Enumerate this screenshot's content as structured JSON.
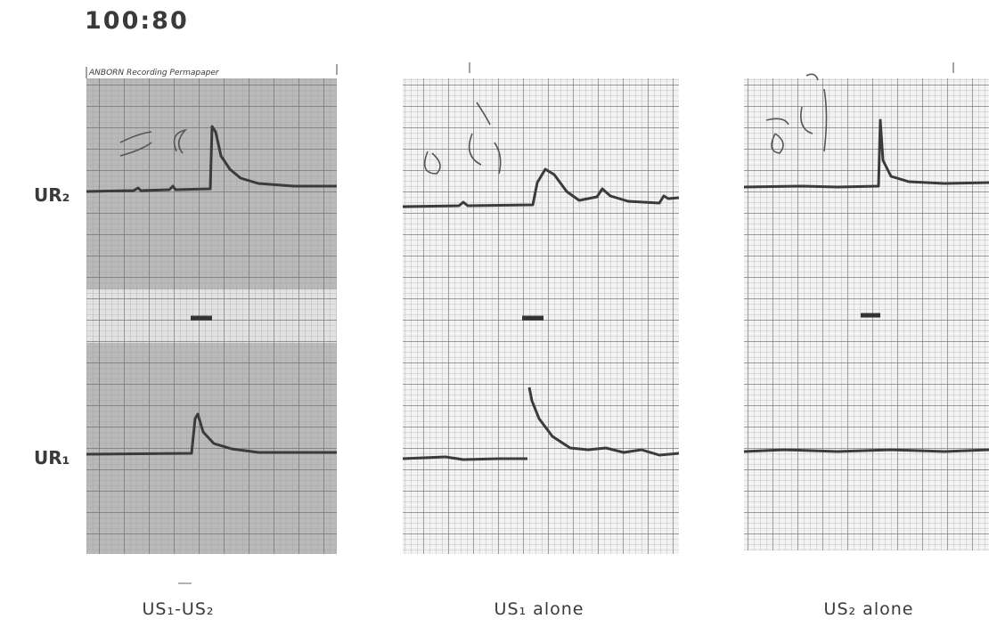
{
  "title": "100:80",
  "paper_label": "ANBORN Recording Permapaper",
  "row_labels": [
    "UR₂",
    "UR₁"
  ],
  "panels": [
    {
      "caption": "US₁-US₂"
    },
    {
      "caption": "US₁ alone"
    },
    {
      "caption": "US₂ alone"
    }
  ]
}
